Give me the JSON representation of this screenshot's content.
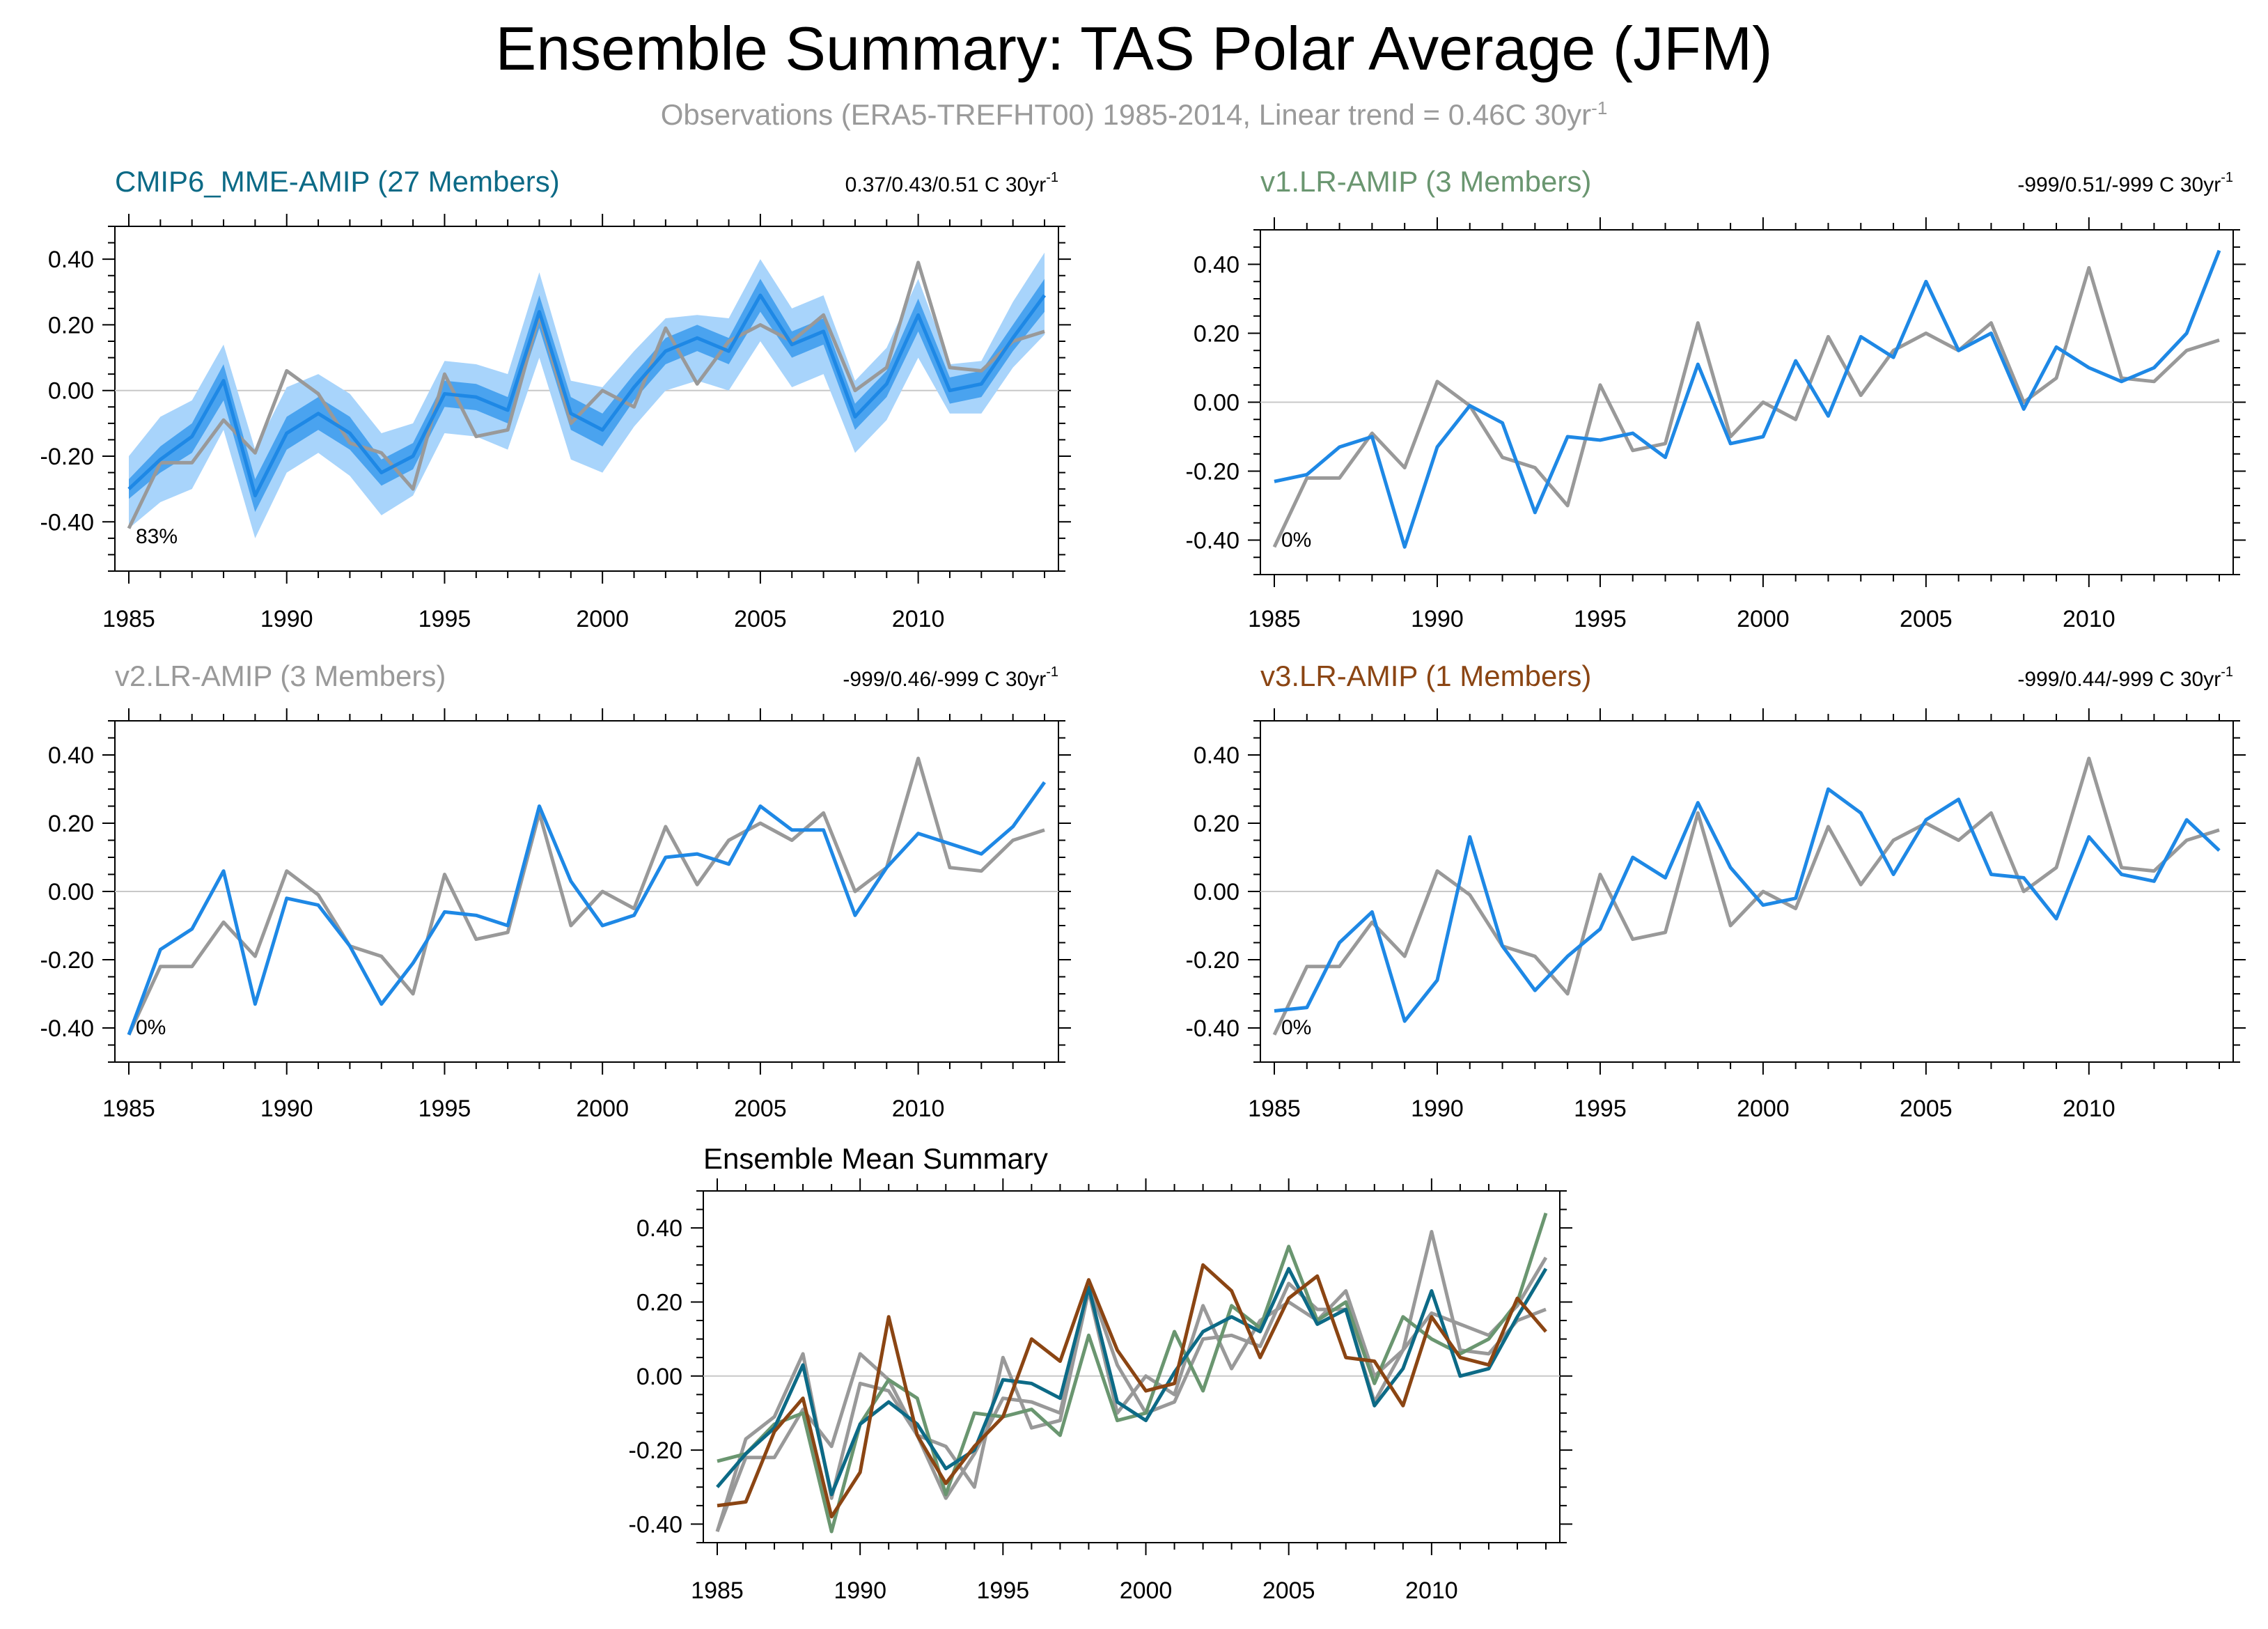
{
  "title": "Ensemble Summary: TAS Polar Average (JFM)",
  "subtitle": {
    "text": "Observations (ERA5-TREFHT00) 1985-2014, Linear trend = 0.46C 30yr",
    "sup": "-1"
  },
  "colors": {
    "observations": "#999999",
    "model_line": "#1e88e5",
    "band_outer": "#a8d4fb",
    "band_inner": "#4aa3ef",
    "CMIP6_MME-AMIP": "#0c6a86",
    "v1.LR-AMIP": "#6a9670",
    "v2.LR-AMIP": "#999999",
    "v3.LR-AMIP": "#8b4513"
  },
  "chart_data": [
    {
      "type": "line",
      "id": "cmip6",
      "title": "CMIP6_MME-AMIP (27 Members)",
      "title_color": "#0c6a86",
      "trend_label": "0.37/0.43/0.51 C 30yr",
      "trend_sup": "-1",
      "percent_label": "83%",
      "x": [
        1985,
        1986,
        1987,
        1988,
        1989,
        1990,
        1991,
        1992,
        1993,
        1994,
        1995,
        1996,
        1997,
        1998,
        1999,
        2000,
        2001,
        2002,
        2003,
        2004,
        2005,
        2006,
        2007,
        2008,
        2009,
        2010,
        2011,
        2012,
        2013,
        2014
      ],
      "xticks": [
        1985,
        1990,
        1995,
        2000,
        2005,
        2010
      ],
      "xlim": [
        1985,
        2014
      ],
      "ylim": [
        -0.55,
        0.5
      ],
      "yticks": [
        -0.4,
        -0.2,
        0.0,
        0.2,
        0.4
      ],
      "yticklabels": [
        "-0.40",
        "-0.20",
        "0.00",
        "0.20",
        "0.40"
      ],
      "series": [
        {
          "role": "ensemble-mean",
          "values": [
            -0.3,
            -0.21,
            -0.14,
            0.03,
            -0.32,
            -0.13,
            -0.07,
            -0.13,
            -0.25,
            -0.2,
            -0.01,
            -0.02,
            -0.06,
            0.24,
            -0.07,
            -0.12,
            0.01,
            0.12,
            0.16,
            0.12,
            0.29,
            0.14,
            0.18,
            -0.08,
            0.02,
            0.23,
            0.0,
            0.02,
            0.16,
            0.29
          ]
        },
        {
          "role": "observations",
          "values": [
            -0.42,
            -0.22,
            -0.22,
            -0.09,
            -0.19,
            0.06,
            -0.01,
            -0.16,
            -0.19,
            -0.3,
            0.05,
            -0.14,
            -0.12,
            0.23,
            -0.1,
            0.0,
            -0.05,
            0.19,
            0.02,
            0.15,
            0.2,
            0.15,
            0.23,
            0.0,
            0.07,
            0.39,
            0.07,
            0.06,
            0.15,
            0.18
          ]
        }
      ],
      "band_inner": {
        "lower": [
          -0.33,
          -0.25,
          -0.19,
          -0.03,
          -0.37,
          -0.18,
          -0.12,
          -0.18,
          -0.29,
          -0.24,
          -0.05,
          -0.06,
          -0.1,
          0.19,
          -0.12,
          -0.17,
          -0.03,
          0.08,
          0.12,
          0.08,
          0.24,
          0.1,
          0.14,
          -0.12,
          -0.02,
          0.18,
          -0.04,
          -0.02,
          0.12,
          0.24
        ],
        "upper": [
          -0.27,
          -0.17,
          -0.1,
          0.08,
          -0.27,
          -0.08,
          -0.02,
          -0.08,
          -0.21,
          -0.16,
          0.03,
          0.02,
          -0.02,
          0.29,
          -0.02,
          -0.07,
          0.05,
          0.16,
          0.2,
          0.16,
          0.34,
          0.18,
          0.22,
          -0.04,
          0.06,
          0.28,
          0.04,
          0.06,
          0.2,
          0.34
        ]
      },
      "band_outer": {
        "lower": [
          -0.42,
          -0.34,
          -0.3,
          -0.12,
          -0.45,
          -0.25,
          -0.19,
          -0.26,
          -0.38,
          -0.32,
          -0.13,
          -0.14,
          -0.18,
          0.1,
          -0.21,
          -0.25,
          -0.11,
          0.0,
          0.03,
          0.0,
          0.15,
          0.01,
          0.05,
          -0.19,
          -0.09,
          0.1,
          -0.07,
          -0.07,
          0.07,
          0.17
        ],
        "upper": [
          -0.2,
          -0.08,
          -0.03,
          0.14,
          -0.18,
          0.01,
          0.05,
          -0.01,
          -0.13,
          -0.1,
          0.09,
          0.08,
          0.05,
          0.36,
          0.03,
          0.01,
          0.12,
          0.22,
          0.23,
          0.22,
          0.4,
          0.25,
          0.29,
          0.03,
          0.13,
          0.34,
          0.08,
          0.09,
          0.27,
          0.42
        ]
      }
    },
    {
      "type": "line",
      "id": "v1",
      "title": "v1.LR-AMIP (3 Members)",
      "title_color": "#6a9670",
      "trend_label": "-999/0.51/-999 C 30yr",
      "trend_sup": "-1",
      "percent_label": "0%",
      "x": [
        1985,
        1986,
        1987,
        1988,
        1989,
        1990,
        1991,
        1992,
        1993,
        1994,
        1995,
        1996,
        1997,
        1998,
        1999,
        2000,
        2001,
        2002,
        2003,
        2004,
        2005,
        2006,
        2007,
        2008,
        2009,
        2010,
        2011,
        2012,
        2013,
        2014
      ],
      "xticks": [
        1985,
        1990,
        1995,
        2000,
        2005,
        2010
      ],
      "xlim": [
        1985,
        2014
      ],
      "ylim": [
        -0.5,
        0.5
      ],
      "yticks": [
        -0.4,
        -0.2,
        0.0,
        0.2,
        0.4
      ],
      "yticklabels": [
        "-0.40",
        "-0.20",
        "0.00",
        "0.20",
        "0.40"
      ],
      "series": [
        {
          "role": "model",
          "values": [
            -0.23,
            -0.21,
            -0.13,
            -0.1,
            -0.42,
            -0.13,
            -0.01,
            -0.06,
            -0.32,
            -0.1,
            -0.11,
            -0.09,
            -0.16,
            0.11,
            -0.12,
            -0.1,
            0.12,
            -0.04,
            0.19,
            0.13,
            0.35,
            0.15,
            0.2,
            -0.02,
            0.16,
            0.1,
            0.06,
            0.1,
            0.2,
            0.44
          ]
        },
        {
          "role": "observations",
          "values": [
            -0.42,
            -0.22,
            -0.22,
            -0.09,
            -0.19,
            0.06,
            -0.01,
            -0.16,
            -0.19,
            -0.3,
            0.05,
            -0.14,
            -0.12,
            0.23,
            -0.1,
            0.0,
            -0.05,
            0.19,
            0.02,
            0.15,
            0.2,
            0.15,
            0.23,
            0.0,
            0.07,
            0.39,
            0.07,
            0.06,
            0.15,
            0.18
          ]
        }
      ]
    },
    {
      "type": "line",
      "id": "v2",
      "title": "v2.LR-AMIP (3 Members)",
      "title_color": "#999999",
      "trend_label": "-999/0.46/-999 C 30yr",
      "trend_sup": "-1",
      "percent_label": "0%",
      "x": [
        1985,
        1986,
        1987,
        1988,
        1989,
        1990,
        1991,
        1992,
        1993,
        1994,
        1995,
        1996,
        1997,
        1998,
        1999,
        2000,
        2001,
        2002,
        2003,
        2004,
        2005,
        2006,
        2007,
        2008,
        2009,
        2010,
        2011,
        2012,
        2013,
        2014
      ],
      "xticks": [
        1985,
        1990,
        1995,
        2000,
        2005,
        2010
      ],
      "xlim": [
        1985,
        2014
      ],
      "ylim": [
        -0.5,
        0.5
      ],
      "yticks": [
        -0.4,
        -0.2,
        0.0,
        0.2,
        0.4
      ],
      "yticklabels": [
        "-0.40",
        "-0.20",
        "0.00",
        "0.20",
        "0.40"
      ],
      "series": [
        {
          "role": "model",
          "values": [
            -0.42,
            -0.17,
            -0.11,
            0.06,
            -0.33,
            -0.02,
            -0.04,
            -0.16,
            -0.33,
            -0.21,
            -0.06,
            -0.07,
            -0.1,
            0.25,
            0.03,
            -0.1,
            -0.07,
            0.1,
            0.11,
            0.08,
            0.25,
            0.18,
            0.18,
            -0.07,
            0.07,
            0.17,
            0.14,
            0.11,
            0.19,
            0.32
          ]
        },
        {
          "role": "observations",
          "values": [
            -0.42,
            -0.22,
            -0.22,
            -0.09,
            -0.19,
            0.06,
            -0.01,
            -0.16,
            -0.19,
            -0.3,
            0.05,
            -0.14,
            -0.12,
            0.23,
            -0.1,
            0.0,
            -0.05,
            0.19,
            0.02,
            0.15,
            0.2,
            0.15,
            0.23,
            0.0,
            0.07,
            0.39,
            0.07,
            0.06,
            0.15,
            0.18
          ]
        }
      ]
    },
    {
      "type": "line",
      "id": "v3",
      "title": "v3.LR-AMIP (1 Members)",
      "title_color": "#8b4513",
      "trend_label": "-999/0.44/-999 C 30yr",
      "trend_sup": "-1",
      "percent_label": "0%",
      "x": [
        1985,
        1986,
        1987,
        1988,
        1989,
        1990,
        1991,
        1992,
        1993,
        1994,
        1995,
        1996,
        1997,
        1998,
        1999,
        2000,
        2001,
        2002,
        2003,
        2004,
        2005,
        2006,
        2007,
        2008,
        2009,
        2010,
        2011,
        2012,
        2013,
        2014
      ],
      "xticks": [
        1985,
        1990,
        1995,
        2000,
        2005,
        2010
      ],
      "xlim": [
        1985,
        2014
      ],
      "ylim": [
        -0.5,
        0.5
      ],
      "yticks": [
        -0.4,
        -0.2,
        0.0,
        0.2,
        0.4
      ],
      "yticklabels": [
        "-0.40",
        "-0.20",
        "0.00",
        "0.20",
        "0.40"
      ],
      "series": [
        {
          "role": "model",
          "values": [
            -0.35,
            -0.34,
            -0.15,
            -0.06,
            -0.38,
            -0.26,
            0.16,
            -0.16,
            -0.29,
            -0.19,
            -0.11,
            0.1,
            0.04,
            0.26,
            0.07,
            -0.04,
            -0.02,
            0.3,
            0.23,
            0.05,
            0.21,
            0.27,
            0.05,
            0.04,
            -0.08,
            0.16,
            0.05,
            0.03,
            0.21,
            0.12
          ]
        },
        {
          "role": "observations",
          "values": [
            -0.42,
            -0.22,
            -0.22,
            -0.09,
            -0.19,
            0.06,
            -0.01,
            -0.16,
            -0.19,
            -0.3,
            0.05,
            -0.14,
            -0.12,
            0.23,
            -0.1,
            0.0,
            -0.05,
            0.19,
            0.02,
            0.15,
            0.2,
            0.15,
            0.23,
            0.0,
            0.07,
            0.39,
            0.07,
            0.06,
            0.15,
            0.18
          ]
        }
      ]
    },
    {
      "type": "line",
      "id": "summary",
      "title": "Ensemble Mean Summary",
      "title_color": "#000000",
      "x": [
        1985,
        1986,
        1987,
        1988,
        1989,
        1990,
        1991,
        1992,
        1993,
        1994,
        1995,
        1996,
        1997,
        1998,
        1999,
        2000,
        2001,
        2002,
        2003,
        2004,
        2005,
        2006,
        2007,
        2008,
        2009,
        2010,
        2011,
        2012,
        2013,
        2014
      ],
      "xticks": [
        1985,
        1990,
        1995,
        2000,
        2005,
        2010
      ],
      "xlim": [
        1985,
        2014
      ],
      "ylim": [
        -0.45,
        0.5
      ],
      "yticks": [
        -0.4,
        -0.2,
        0.0,
        0.2,
        0.4
      ],
      "yticklabels": [
        "-0.40",
        "-0.20",
        "0.00",
        "0.20",
        "0.40"
      ],
      "series": [
        {
          "role": "observations",
          "color_key": "observations",
          "values": [
            -0.42,
            -0.22,
            -0.22,
            -0.09,
            -0.19,
            0.06,
            -0.01,
            -0.16,
            -0.19,
            -0.3,
            0.05,
            -0.14,
            -0.12,
            0.23,
            -0.1,
            0.0,
            -0.05,
            0.19,
            0.02,
            0.15,
            0.2,
            0.15,
            0.23,
            0.0,
            0.07,
            0.39,
            0.07,
            0.06,
            0.15,
            0.18
          ]
        },
        {
          "role": "v2",
          "color_key": "v2.LR-AMIP",
          "values": [
            -0.42,
            -0.17,
            -0.11,
            0.06,
            -0.33,
            -0.02,
            -0.04,
            -0.16,
            -0.33,
            -0.21,
            -0.06,
            -0.07,
            -0.1,
            0.25,
            0.03,
            -0.1,
            -0.07,
            0.1,
            0.11,
            0.08,
            0.25,
            0.18,
            0.18,
            -0.07,
            0.07,
            0.17,
            0.14,
            0.11,
            0.19,
            0.32
          ]
        },
        {
          "role": "v1",
          "color_key": "v1.LR-AMIP",
          "values": [
            -0.23,
            -0.21,
            -0.13,
            -0.1,
            -0.42,
            -0.13,
            -0.01,
            -0.06,
            -0.32,
            -0.1,
            -0.11,
            -0.09,
            -0.16,
            0.11,
            -0.12,
            -0.1,
            0.12,
            -0.04,
            0.19,
            0.13,
            0.35,
            0.15,
            0.2,
            -0.02,
            0.16,
            0.1,
            0.06,
            0.1,
            0.2,
            0.44
          ]
        },
        {
          "role": "cmip6",
          "color_key": "CMIP6_MME-AMIP",
          "values": [
            -0.3,
            -0.21,
            -0.14,
            0.03,
            -0.32,
            -0.13,
            -0.07,
            -0.13,
            -0.25,
            -0.2,
            -0.01,
            -0.02,
            -0.06,
            0.24,
            -0.07,
            -0.12,
            0.01,
            0.12,
            0.16,
            0.12,
            0.29,
            0.14,
            0.18,
            -0.08,
            0.02,
            0.23,
            0.0,
            0.02,
            0.16,
            0.29
          ]
        },
        {
          "role": "v3",
          "color_key": "v3.LR-AMIP",
          "values": [
            -0.35,
            -0.34,
            -0.15,
            -0.06,
            -0.38,
            -0.26,
            0.16,
            -0.16,
            -0.29,
            -0.19,
            -0.11,
            0.1,
            0.04,
            0.26,
            0.07,
            -0.04,
            -0.02,
            0.3,
            0.23,
            0.05,
            0.21,
            0.27,
            0.05,
            0.04,
            -0.08,
            0.16,
            0.05,
            0.03,
            0.21,
            0.12
          ]
        }
      ]
    }
  ]
}
